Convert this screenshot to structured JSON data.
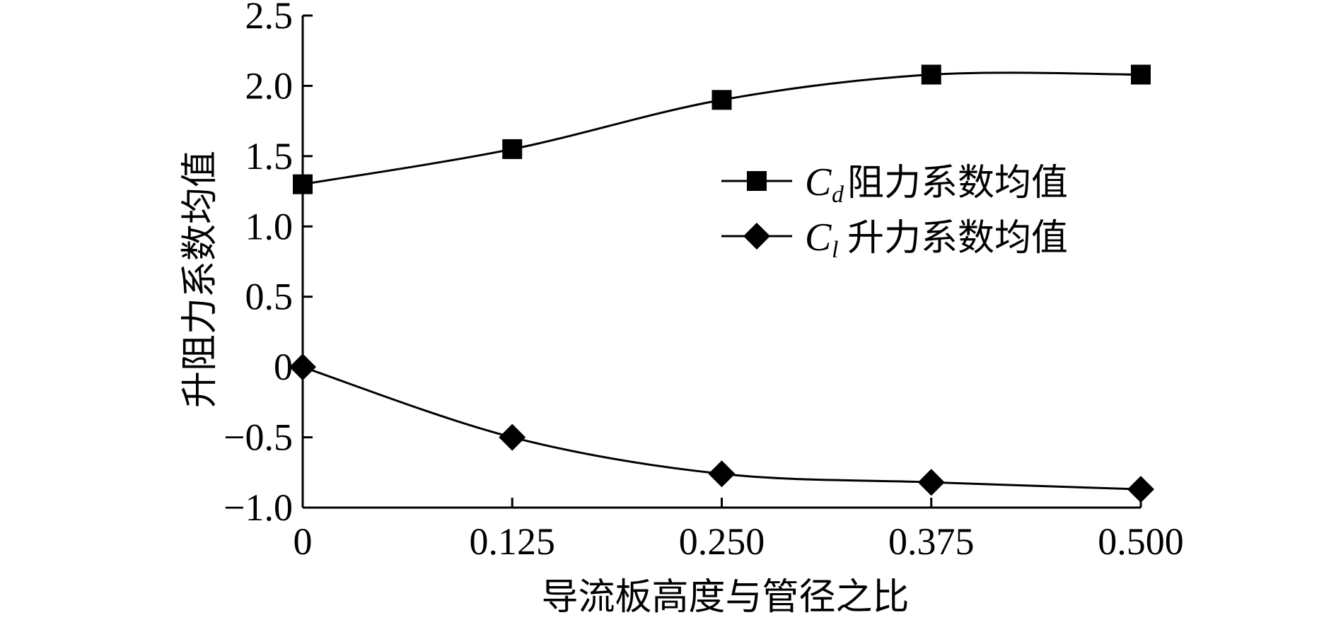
{
  "chart_data": {
    "type": "line",
    "xlabel": "导流板高度与管径之比",
    "ylabel": "升阻力系数均值",
    "x": [
      0,
      0.125,
      0.25,
      0.375,
      0.5
    ],
    "x_tick_labels": [
      "0",
      "0.125",
      "0.250",
      "0.375",
      "0.500"
    ],
    "xlim": [
      0,
      0.5
    ],
    "ylim": [
      -1.0,
      2.5
    ],
    "y_ticks": [
      -1.0,
      -0.5,
      0,
      0.5,
      1.0,
      1.5,
      2.0,
      2.5
    ],
    "y_tick_labels": [
      "−1.0",
      "−0.5",
      "0",
      "0.5",
      "1.0",
      "1.5",
      "2.0",
      "2.5"
    ],
    "grid": false,
    "legend_position": "upper-right",
    "line_color": "#000000",
    "series": [
      {
        "symbol": "C",
        "subscript": "d",
        "name": "阻力系数均值",
        "marker": "square",
        "values": [
          1.3,
          1.55,
          1.9,
          2.08,
          2.08
        ]
      },
      {
        "symbol": "C",
        "subscript": "l",
        "name": "升力系数均值",
        "marker": "diamond",
        "values": [
          0.0,
          -0.5,
          -0.76,
          -0.82,
          -0.87
        ]
      }
    ]
  }
}
